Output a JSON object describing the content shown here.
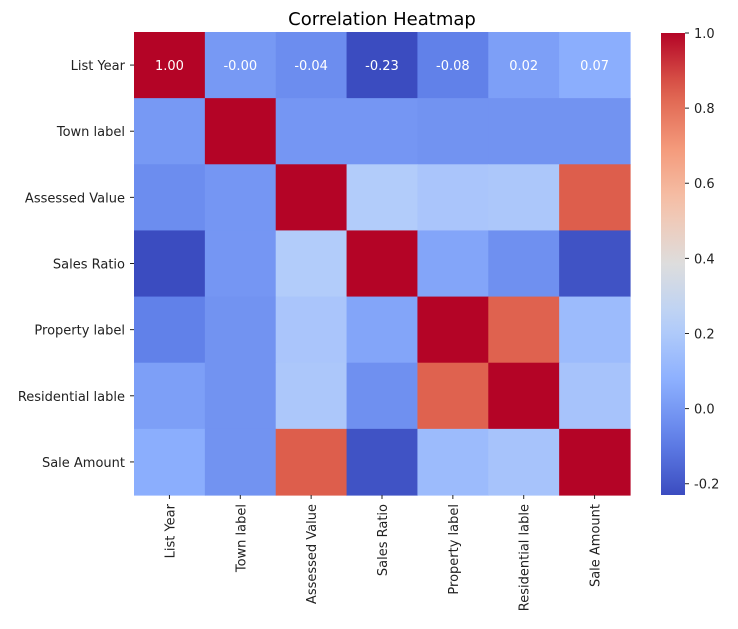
{
  "chart_data": {
    "type": "heatmap",
    "title": "Correlation Heatmap",
    "row_labels": [
      "List Year",
      "Town label",
      "Assessed Value",
      "Sales Ratio",
      "Property label",
      "Residential lable",
      "Sale Amount"
    ],
    "col_labels": [
      "List Year",
      "Town label",
      "Assessed Value",
      "Sales Ratio",
      "Property label",
      "Residential lable",
      "Sale Amount"
    ],
    "values": [
      [
        1.0,
        -0.0,
        -0.04,
        -0.23,
        -0.08,
        0.02,
        0.07
      ],
      [
        -0.0,
        1.0,
        -0.01,
        -0.01,
        -0.02,
        -0.02,
        -0.02
      ],
      [
        -0.04,
        -0.01,
        1.0,
        0.21,
        0.18,
        0.19,
        0.85
      ],
      [
        -0.23,
        -0.01,
        0.21,
        1.0,
        0.04,
        -0.03,
        -0.21
      ],
      [
        -0.08,
        -0.02,
        0.18,
        0.04,
        1.0,
        0.84,
        0.13
      ],
      [
        0.02,
        -0.02,
        0.19,
        -0.03,
        0.84,
        1.0,
        0.17
      ],
      [
        0.07,
        -0.02,
        0.85,
        -0.21,
        0.13,
        0.17,
        1.0
      ]
    ],
    "annotations": [
      "1.00",
      "-0.00",
      "-0.04",
      "-0.23",
      "-0.08",
      "0.02",
      "0.07"
    ],
    "colormap": "coolwarm",
    "vmin": -0.23,
    "vmax": 1.0,
    "colorbar_ticks": [
      "1.0",
      "0.8",
      "0.6",
      "0.4",
      "0.2",
      "0.0",
      "-0.2"
    ],
    "colorbar_tick_values": [
      1.0,
      0.8,
      0.6,
      0.4,
      0.2,
      0.0,
      -0.2
    ]
  }
}
